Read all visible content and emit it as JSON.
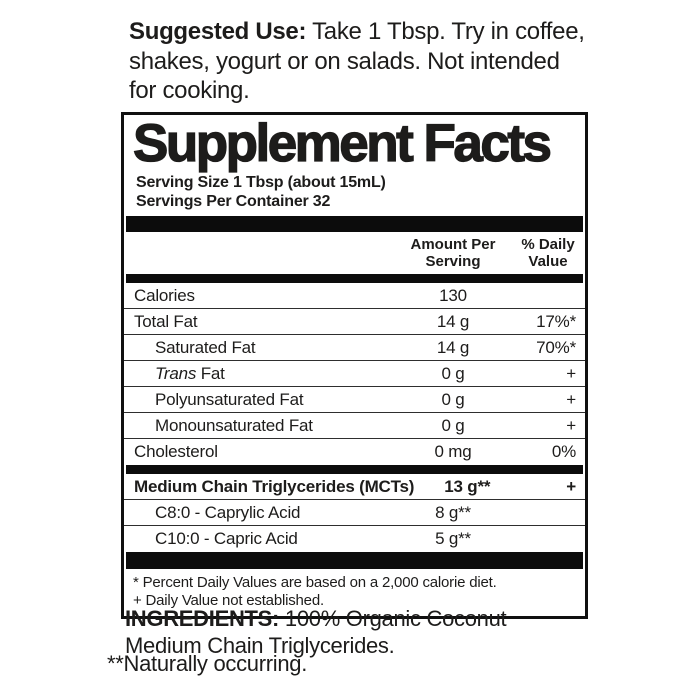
{
  "suggested_use": {
    "label": "Suggested Use:",
    "text": "Take 1 Tbsp. Try in coffee, shakes, yogurt or on salads. Not intended for cooking."
  },
  "panel": {
    "title": "Supplement Facts",
    "serving_size": "Serving Size 1 Tbsp (about 15mL)",
    "servings_per_container": "Servings Per Container 32",
    "columns": {
      "amount": "Amount Per Serving",
      "dv": "% Daily Value"
    },
    "main_rows": [
      {
        "name": "Calories",
        "amount": "130",
        "dv": ""
      },
      {
        "name": "Total Fat",
        "amount": "14 g",
        "dv": "17%*"
      },
      {
        "name": "Saturated Fat",
        "amount": "14 g",
        "dv": "70%*",
        "indent": true
      },
      {
        "name_parts": [
          {
            "text": "Trans",
            "italic": true
          },
          {
            "text": " Fat"
          }
        ],
        "amount": "0 g",
        "dv": "+",
        "indent": true
      },
      {
        "name": "Polyunsaturated Fat",
        "amount": "0 g",
        "dv": "+",
        "indent": true
      },
      {
        "name": "Monounsaturated Fat",
        "amount": "0 g",
        "dv": "+",
        "indent": true
      },
      {
        "name": "Cholesterol",
        "amount": "0 mg",
        "dv": "0%"
      }
    ],
    "mct_rows": [
      {
        "name": "Medium Chain Triglycerides (MCTs)",
        "amount": "13 g**",
        "dv": "+",
        "bold": true
      },
      {
        "name": "C8:0 - Caprylic Acid",
        "amount": "8 g**",
        "dv": "",
        "indent": true
      },
      {
        "name": "C10:0 - Capric Acid",
        "amount": "5 g**",
        "dv": "",
        "indent": true
      }
    ],
    "footnotes": [
      "* Percent Daily Values are based on a 2,000 calorie diet.",
      "+ Daily Value not established."
    ]
  },
  "ingredients": {
    "label": "INGREDIENTS:",
    "text": "100% Organic Coconut Medium Chain Triglycerides."
  },
  "naturally_occurring": "**Naturally occurring."
}
